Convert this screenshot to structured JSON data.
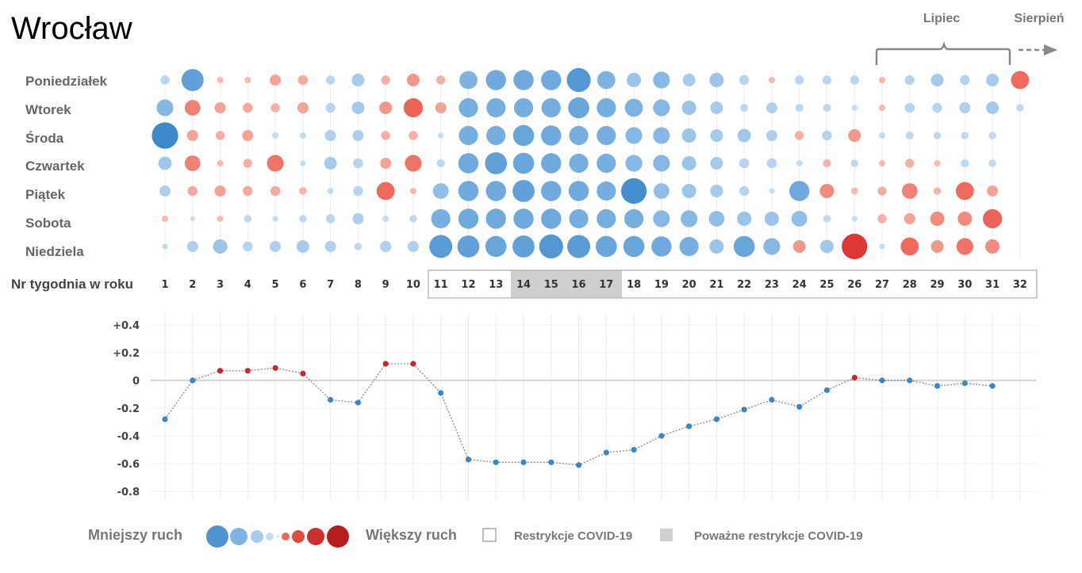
{
  "title": "Wrocław",
  "months": {
    "july": "Lipiec",
    "august": "Sierpień"
  },
  "chart_data": [
    {
      "type": "bubble-matrix",
      "rows": [
        "Poniedziałek",
        "Wtorek",
        "Środa",
        "Czwartek",
        "Piątek",
        "Sobota",
        "Niedziela"
      ],
      "x_label": "Nr tygodnia w roku",
      "weeks": [
        1,
        2,
        3,
        4,
        5,
        6,
        7,
        8,
        9,
        10,
        11,
        12,
        13,
        14,
        15,
        16,
        17,
        18,
        19,
        20,
        21,
        22,
        23,
        24,
        25,
        26,
        27,
        28,
        29,
        30,
        31,
        32
      ],
      "covid_restrictions_weeks": [
        11,
        31
      ],
      "severe_restrictions_weeks": [
        14,
        17
      ],
      "values": [
        [
          -0.1,
          -0.6,
          0.05,
          0.05,
          0.15,
          0.12,
          -0.1,
          -0.2,
          0.1,
          0.2,
          0.1,
          -0.4,
          -0.5,
          -0.5,
          -0.5,
          -0.7,
          -0.4,
          -0.25,
          -0.35,
          -0.2,
          -0.25,
          -0.12,
          0.05,
          -0.1,
          -0.1,
          -0.1,
          0.05,
          -0.12,
          -0.2,
          -0.12,
          -0.2,
          0.4
        ],
        [
          -0.35,
          0.3,
          0.15,
          0.12,
          0.1,
          0.15,
          -0.12,
          -0.2,
          0.2,
          0.45,
          0.15,
          -0.45,
          -0.45,
          -0.45,
          -0.45,
          -0.55,
          -0.45,
          -0.4,
          -0.35,
          -0.25,
          -0.2,
          -0.08,
          -0.15,
          -0.08,
          -0.08,
          -0.04,
          0.05,
          -0.12,
          -0.12,
          -0.15,
          -0.2,
          -0.07
        ],
        [
          -0.85,
          0.15,
          0.1,
          0.15,
          -0.05,
          -0.05,
          -0.15,
          -0.15,
          0.1,
          0.1,
          -0.04,
          -0.45,
          -0.45,
          -0.55,
          -0.5,
          -0.45,
          -0.45,
          -0.35,
          -0.35,
          -0.25,
          -0.2,
          -0.22,
          -0.15,
          0.1,
          -0.12,
          0.2,
          -0.05,
          -0.08,
          -0.07,
          -0.07,
          -0.07
        ],
        [
          -0.22,
          0.3,
          0.05,
          0.1,
          0.35,
          -0.04,
          -0.2,
          -0.12,
          0.15,
          0.35,
          -0.08,
          -0.5,
          -0.6,
          -0.55,
          -0.5,
          -0.45,
          -0.45,
          -0.35,
          -0.35,
          -0.25,
          -0.2,
          -0.12,
          -0.12,
          -0.05,
          0.08,
          -0.07,
          0.05,
          0.1,
          0.05,
          -0.08,
          -0.07
        ],
        [
          -0.15,
          0.12,
          0.15,
          0.12,
          0.12,
          0.07,
          -0.05,
          -0.12,
          0.4,
          0.05,
          -0.3,
          -0.5,
          -0.5,
          -0.6,
          -0.5,
          -0.5,
          -0.45,
          -0.8,
          -0.3,
          -0.25,
          -0.2,
          -0.12,
          -0.04,
          -0.5,
          0.25,
          0.06,
          0.1,
          0.3,
          0.07,
          0.4,
          0.15
        ],
        [
          0.05,
          -0.03,
          0.05,
          -0.07,
          -0.04,
          -0.07,
          -0.1,
          -0.15,
          -0.05,
          -0.07,
          -0.45,
          -0.5,
          -0.5,
          -0.5,
          -0.5,
          -0.45,
          -0.45,
          -0.45,
          -0.35,
          -0.35,
          -0.3,
          -0.25,
          -0.25,
          -0.3,
          -0.07,
          -0.04,
          0.1,
          0.15,
          0.25,
          0.25,
          0.45
        ],
        [
          -0.04,
          -0.15,
          -0.25,
          -0.12,
          -0.15,
          -0.2,
          -0.15,
          -0.07,
          -0.15,
          -0.15,
          -0.65,
          -0.6,
          -0.55,
          -0.6,
          -0.7,
          -0.65,
          -0.55,
          -0.55,
          -0.5,
          -0.45,
          -0.25,
          -0.55,
          -0.35,
          0.2,
          -0.22,
          0.8,
          -0.04,
          0.4,
          0.2,
          0.35,
          0.25
        ]
      ]
    },
    {
      "type": "line",
      "x": [
        1,
        2,
        3,
        4,
        5,
        6,
        7,
        8,
        9,
        10,
        11,
        12,
        13,
        14,
        15,
        16,
        17,
        18,
        19,
        20,
        21,
        22,
        23,
        24,
        25,
        26,
        27,
        28,
        29,
        30,
        31
      ],
      "y": [
        -0.28,
        0.0,
        0.07,
        0.07,
        0.09,
        0.05,
        -0.14,
        -0.16,
        0.12,
        0.12,
        -0.09,
        -0.57,
        -0.59,
        -0.59,
        -0.59,
        -0.61,
        -0.52,
        -0.5,
        -0.4,
        -0.33,
        -0.28,
        -0.21,
        -0.14,
        -0.19,
        -0.07,
        0.02,
        0.0,
        0.0,
        -0.04,
        -0.02,
        -0.04
      ],
      "yticks": [
        "+0.4",
        "+0.2",
        "0",
        "-0.2",
        "-0.4",
        "-0.6",
        "-0.8"
      ],
      "ylim": [
        -0.8,
        0.4
      ]
    }
  ],
  "legend": {
    "less": "Mniejszy ruch",
    "more": "Większy ruch",
    "restrictions": "Restrykcje COVID-19",
    "severe": "Poważne restrykcje COVID-19"
  },
  "colors": {
    "blue_light": "#c6ddf2",
    "blue_mid": "#7fb3e3",
    "blue_dark": "#2f82c4",
    "red_light": "#f7b8ad",
    "red_mid": "#ee6a5c",
    "red_dark": "#b81d1d",
    "line": "#888888",
    "severe_fill": "#cfcfcf",
    "grid": "#ececec"
  }
}
